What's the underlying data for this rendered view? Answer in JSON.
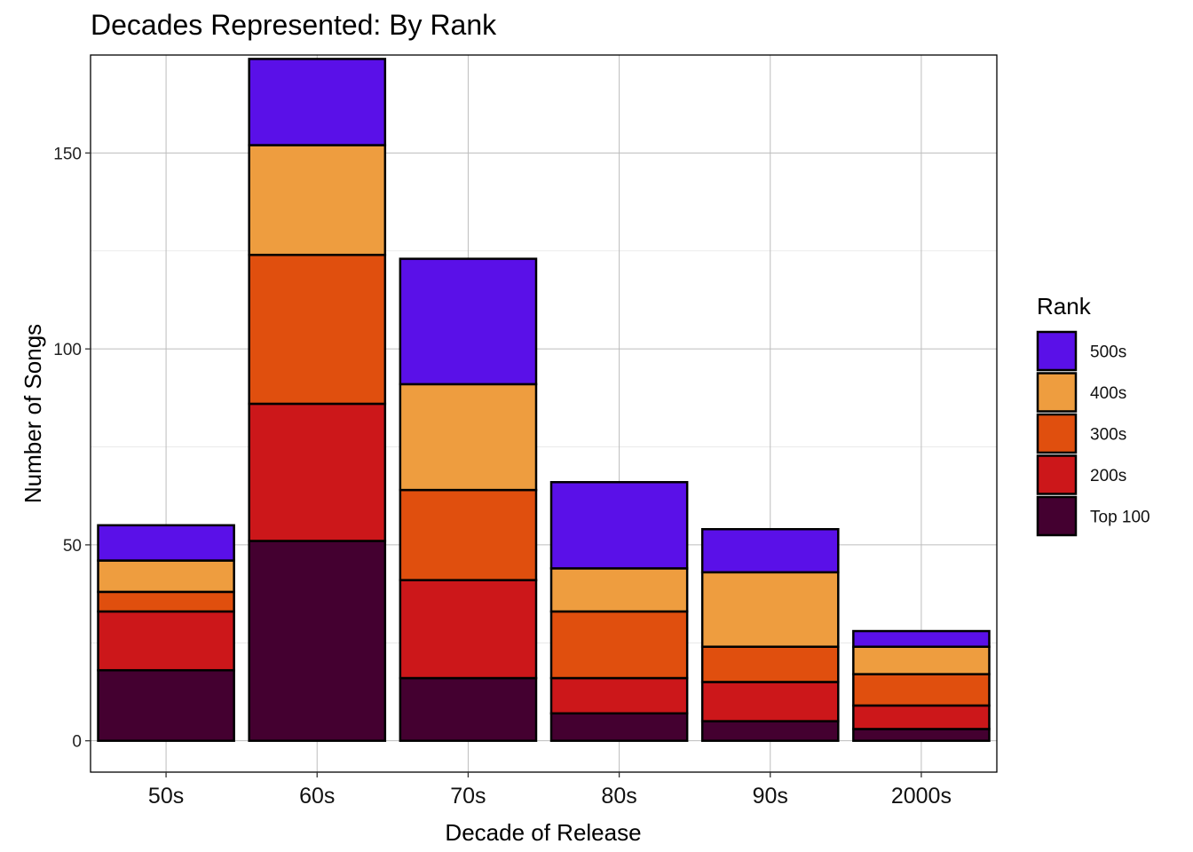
{
  "chart_data": {
    "type": "bar",
    "stacked": true,
    "title": "Decades Represented: By Rank",
    "xlabel": "Decade of Release",
    "ylabel": "Number of Songs",
    "categories": [
      "50s",
      "60s",
      "70s",
      "80s",
      "90s",
      "2000s"
    ],
    "ylim": [
      -8,
      175
    ],
    "yticks": [
      0,
      50,
      100,
      150
    ],
    "grid": true,
    "legend": {
      "title": "Rank",
      "position": "right"
    },
    "series": [
      {
        "name": "Top 100",
        "color": "#440030",
        "values": [
          18,
          51,
          16,
          7,
          5,
          3
        ]
      },
      {
        "name": "200s",
        "color": "#CC171A",
        "values": [
          15,
          35,
          25,
          9,
          10,
          6
        ]
      },
      {
        "name": "300s",
        "color": "#E04F0E",
        "values": [
          5,
          38,
          23,
          17,
          9,
          8
        ]
      },
      {
        "name": "400s",
        "color": "#EE9D3F",
        "values": [
          8,
          28,
          27,
          11,
          19,
          7
        ]
      },
      {
        "name": "500s",
        "color": "#5A10E8",
        "values": [
          9,
          22,
          32,
          22,
          11,
          4
        ]
      }
    ]
  }
}
